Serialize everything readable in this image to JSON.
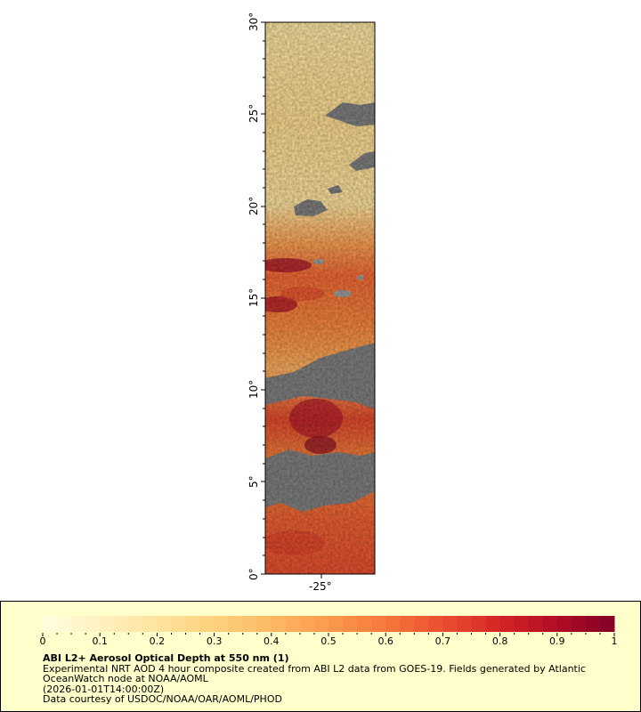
{
  "map": {
    "lat_labels": [
      "0°",
      "5°",
      "10°",
      "15°",
      "20°",
      "25°",
      "30°"
    ],
    "lon_label": "-25°",
    "no_data_color": "#808080"
  },
  "legend": {
    "ticks": [
      "0",
      "0.1",
      "0.2",
      "0.3",
      "0.4",
      "0.5",
      "0.6",
      "0.7",
      "0.8",
      "0.9",
      "1"
    ],
    "title": "ABI L2+ Aerosol Optical Depth at 550 nm (1)",
    "line1": "Experimental NRT AOD 4 hour composite created from ABI L2 data from GOES-19. Fields generated by Atlantic",
    "line2": "OceanWatch node at NOAA/AOML",
    "line3": "(2026-01-01T14:00:00Z)",
    "line4": "Data courtesy of USDOC/NOAA/OAR/AOML/PHOD",
    "colors": [
      "#ffffe0",
      "#fff1c0",
      "#ffe39e",
      "#fdd17e",
      "#fdb964",
      "#fb9a4c",
      "#f6783c",
      "#ea4f2f",
      "#d42526",
      "#b20d26",
      "#800026"
    ]
  }
}
